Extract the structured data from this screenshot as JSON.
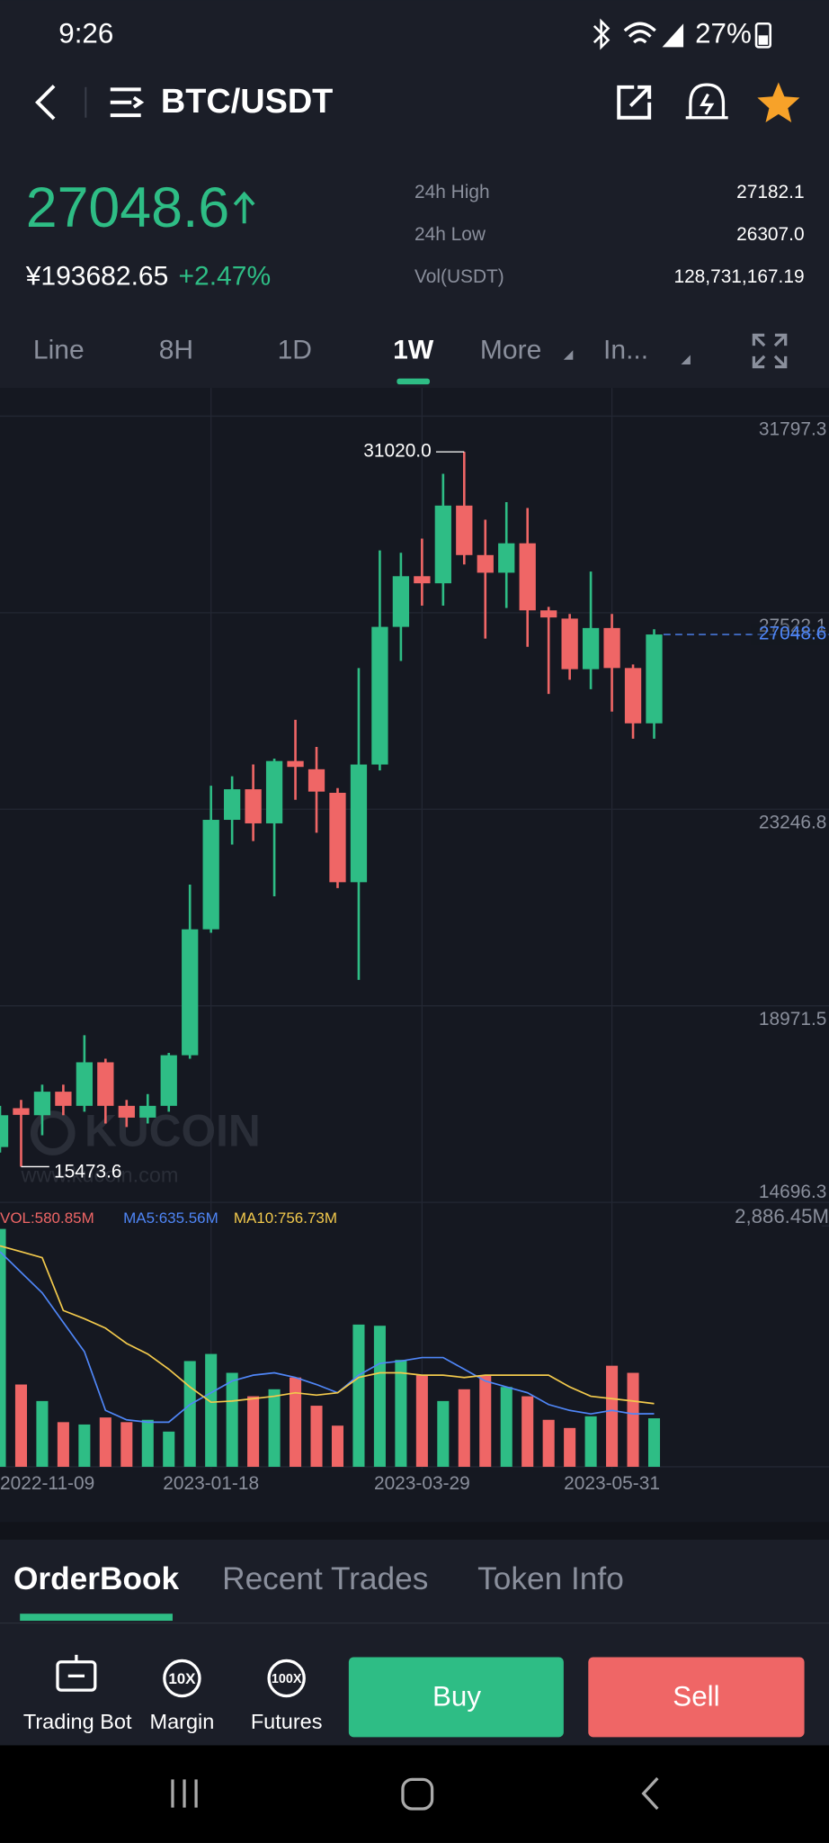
{
  "status_bar": {
    "time": "9:26",
    "battery": "27%"
  },
  "header": {
    "pair": "BTC/USDT"
  },
  "ticker": {
    "price": "27048.6",
    "cny": "¥193682.65",
    "change": "+2.47%",
    "stats": [
      {
        "label": "24h High",
        "value": "27182.1"
      },
      {
        "label": "24h Low",
        "value": "26307.0"
      },
      {
        "label": "Vol(USDT)",
        "value": "128,731,167.19"
      }
    ]
  },
  "timeframe_tabs": [
    "Line",
    "8H",
    "1D",
    "1W",
    "More",
    "In..."
  ],
  "selected_tab": 3,
  "chart_data": {
    "type": "candlestick",
    "up_color": "#2ebd85",
    "down_color": "#ef6666",
    "categories": [
      "2022-11-09",
      null,
      null,
      null,
      null,
      null,
      null,
      null,
      null,
      null,
      "2023-01-18",
      null,
      null,
      null,
      null,
      null,
      null,
      null,
      null,
      null,
      "2023-03-29",
      null,
      null,
      null,
      null,
      null,
      null,
      null,
      null,
      "2023-05-31",
      null,
      null
    ],
    "open": [
      15900,
      16745,
      16592,
      17104,
      16796,
      17743,
      16796,
      16540,
      16796,
      17897,
      20636,
      23017,
      23682,
      22940,
      24296,
      24117,
      23605,
      21660,
      24220,
      27214,
      28316,
      28162,
      29852,
      28776,
      28392,
      29032,
      27573,
      27394,
      26294,
      27189,
      26319,
      25116
    ],
    "high": [
      16796,
      16924,
      17257,
      17257,
      18332,
      17820,
      16924,
      17052,
      17948,
      21609,
      23759,
      23964,
      24220,
      24348,
      25192,
      24604,
      23708,
      26319,
      28878,
      28827,
      29134,
      30543,
      31020.0,
      29544,
      29928,
      29800,
      27650,
      27496,
      28418,
      27496,
      26396,
      27163
    ],
    "low": [
      15780,
      15473.6,
      16156,
      16592,
      16668,
      16412,
      16335,
      16412,
      16668,
      17820,
      20560,
      22480,
      22556,
      21353,
      23452,
      22735,
      21532,
      19535,
      24092,
      26472,
      27676,
      27676,
      28572,
      26959,
      27624,
      26780,
      25756,
      26064,
      25857,
      25372,
      24782,
      24782
    ],
    "close": [
      16592,
      16600,
      17104,
      16796,
      17743,
      16796,
      16540,
      16796,
      17897,
      20636,
      23017,
      23682,
      22940,
      24296,
      24168,
      23631,
      21660,
      24220,
      27214,
      28316,
      28162,
      29852,
      28776,
      28392,
      29032,
      27573,
      27419,
      26294,
      27189,
      26319,
      25116,
      27048.6
    ],
    "ylim": [
      14696.3,
      31797.3
    ],
    "yticks": [
      31797.3,
      27522.1,
      23246.8,
      18971.5,
      14696.3
    ],
    "grid": true,
    "last_price": 27048.6,
    "last_price_color": "#4f86f7",
    "max_label": "31020.0",
    "min_label": "15473.6",
    "watermark": "KUCOIN",
    "watermark_url": "www.kucoin.com",
    "volume_series": [
      {
        "name": "VOL:580.85M",
        "color": "#ef6666",
        "values": [
          2850,
          986,
          788,
          535,
          507,
          591,
          535,
          563,
          422,
          1267,
          1352,
          1126,
          845,
          929,
          1070,
          732,
          493,
          1704,
          1690,
          1281,
          1098,
          788,
          929,
          1098,
          957,
          845,
          563,
          465,
          605,
          1211,
          1126,
          580.85
        ]
      },
      {
        "name": "MA5:635.56M",
        "color": "#4f86f7",
        "values": [
          2577,
          2330,
          2084,
          1730,
          1380,
          676,
          563,
          535,
          535,
          746,
          887,
          1028,
          1098,
          1126,
          1070,
          986,
          887,
          1098,
          1239,
          1267,
          1309,
          1309,
          1169,
          1028,
          957,
          887,
          746,
          676,
          634,
          676,
          634,
          635.56
        ]
      },
      {
        "name": "MA10:756.73M",
        "color": "#f2c94c",
        "values": [
          2647,
          2577,
          2506,
          1873,
          1774,
          1661,
          1478,
          1352,
          1169,
          957,
          774,
          788,
          816,
          845,
          887,
          859,
          887,
          1070,
          1126,
          1126,
          1098,
          1098,
          1070,
          1098,
          1098,
          1098,
          1098,
          957,
          845,
          816,
          788,
          756.73
        ]
      }
    ],
    "y2lim": [
      0,
      2886.45
    ],
    "y2ticks": [
      {
        "value": 2886.45,
        "label": "2,886.45M"
      }
    ]
  },
  "bottom_tabs": [
    "OrderBook",
    "Recent Trades",
    "Token Info"
  ],
  "selected_bottom_tab": 0,
  "actions": [
    {
      "label": "Trading Bot"
    },
    {
      "label": "Margin",
      "icon": "10X"
    },
    {
      "label": "Futures",
      "icon": "100X"
    }
  ],
  "buy": "Buy",
  "sell": "Sell"
}
